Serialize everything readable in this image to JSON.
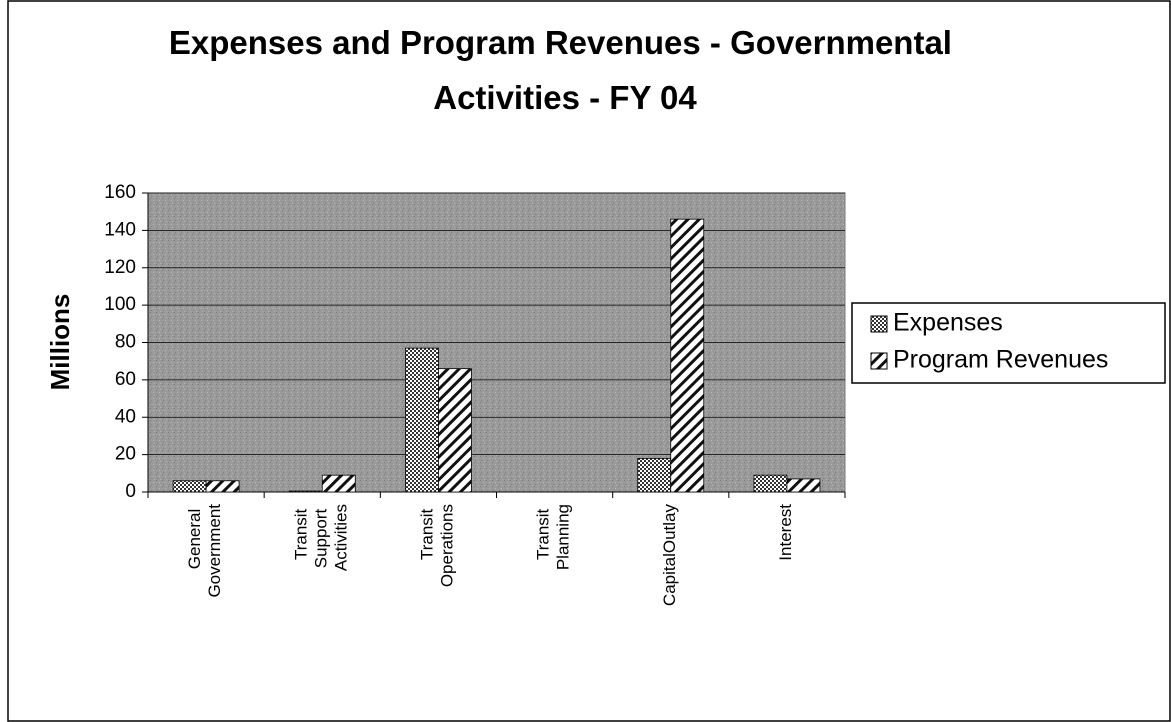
{
  "chart_data": {
    "type": "bar",
    "title": "Expenses and Program Revenues - Governmental Activities - FY 04",
    "y_label": "Millions",
    "categories": [
      "General Government",
      "Transit Support Activities",
      "Transit Operations",
      "Transit Planning",
      "CapitalOutlay",
      "Interest"
    ],
    "series": [
      {
        "name": "Expenses",
        "color": "#555555",
        "values": [
          6,
          0.5,
          77,
          0,
          18,
          9
        ]
      },
      {
        "name": "Program Revenues",
        "color": "#222222",
        "values": [
          6,
          9,
          66,
          0,
          146,
          7
        ]
      }
    ],
    "ylim": [
      0,
      160
    ],
    "yticks": [
      0,
      20,
      40,
      60,
      80,
      100,
      120,
      140,
      160
    ],
    "grid": true,
    "legend": "right"
  }
}
